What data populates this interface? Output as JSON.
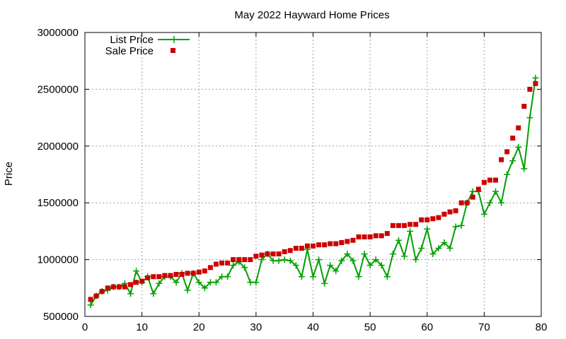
{
  "chart_data": {
    "type": "scatter",
    "title": "May 2022 Hayward Home Prices",
    "xlabel": "",
    "ylabel": "Price",
    "xlim": [
      0,
      80
    ],
    "ylim": [
      500000,
      3000000
    ],
    "x_ticks": [
      0,
      10,
      20,
      30,
      40,
      50,
      60,
      70,
      80
    ],
    "y_ticks": [
      500000,
      1000000,
      1500000,
      2000000,
      2500000,
      3000000
    ],
    "grid": true,
    "legend_position": "top-left",
    "x": [
      1,
      2,
      3,
      4,
      5,
      6,
      7,
      8,
      9,
      10,
      11,
      12,
      13,
      14,
      15,
      16,
      17,
      18,
      19,
      20,
      21,
      22,
      23,
      24,
      25,
      26,
      27,
      28,
      29,
      30,
      31,
      32,
      33,
      34,
      35,
      36,
      37,
      38,
      39,
      40,
      41,
      42,
      43,
      44,
      45,
      46,
      47,
      48,
      49,
      50,
      51,
      52,
      53,
      54,
      55,
      56,
      57,
      58,
      59,
      60,
      61,
      62,
      63,
      64,
      65,
      66,
      67,
      68,
      69,
      70,
      71,
      72,
      73,
      74,
      75,
      76,
      77,
      78,
      79
    ],
    "series": [
      {
        "name": "List Price",
        "style": "linespoints",
        "color": "#00a000",
        "values": [
          600000,
          680000,
          720000,
          730000,
          760000,
          760000,
          790000,
          700000,
          900000,
          800000,
          850000,
          700000,
          790000,
          850000,
          850000,
          800000,
          880000,
          730000,
          880000,
          800000,
          750000,
          800000,
          800000,
          850000,
          850000,
          950000,
          980000,
          930000,
          800000,
          800000,
          1000000,
          1050000,
          990000,
          990000,
          1000000,
          990000,
          950000,
          850000,
          1090000,
          850000,
          1000000,
          790000,
          950000,
          900000,
          990000,
          1050000,
          990000,
          850000,
          1050000,
          950000,
          1000000,
          950000,
          850000,
          1050000,
          1170000,
          1030000,
          1250000,
          1000000,
          1100000,
          1270000,
          1050000,
          1100000,
          1150000,
          1100000,
          1290000,
          1300000,
          1500000,
          1600000,
          1600000,
          1400000,
          1500000,
          1600000,
          1500000,
          1750000,
          1870000,
          1990000,
          1800000,
          2250000,
          2600000
        ]
      },
      {
        "name": "Sale Price",
        "style": "points",
        "color": "#cc0000",
        "values": [
          650000,
          680000,
          720000,
          750000,
          760000,
          760000,
          760000,
          780000,
          800000,
          810000,
          840000,
          850000,
          850000,
          860000,
          860000,
          870000,
          870000,
          880000,
          880000,
          890000,
          900000,
          930000,
          960000,
          970000,
          970000,
          1000000,
          1000000,
          1000000,
          1000000,
          1030000,
          1040000,
          1050000,
          1050000,
          1050000,
          1070000,
          1080000,
          1100000,
          1100000,
          1120000,
          1120000,
          1130000,
          1130000,
          1140000,
          1140000,
          1150000,
          1160000,
          1170000,
          1200000,
          1200000,
          1200000,
          1210000,
          1210000,
          1230000,
          1300000,
          1300000,
          1300000,
          1310000,
          1310000,
          1350000,
          1350000,
          1360000,
          1370000,
          1400000,
          1420000,
          1430000,
          1500000,
          1500000,
          1550000,
          1620000,
          1680000,
          1700000,
          1700000,
          1880000,
          1950000,
          2070000,
          2160000,
          2350000,
          2500000,
          2550000
        ]
      }
    ]
  }
}
